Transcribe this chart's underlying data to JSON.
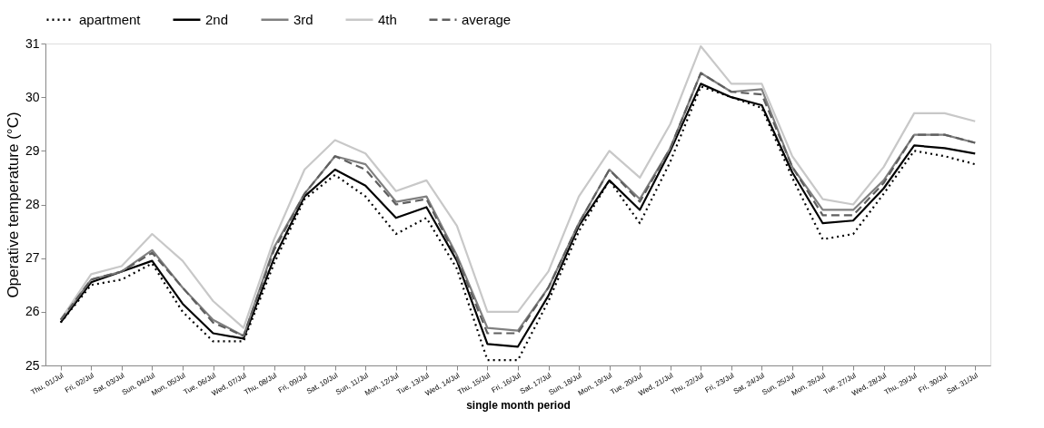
{
  "chart_data": {
    "type": "line",
    "xlabel": "single month period",
    "ylabel": "Operative temperature (°C)",
    "categories": [
      "Thu, 01/Jul",
      "Fri, 02/Jul",
      "Sat, 03/Jul",
      "Sun, 04/Jul",
      "Mon, 05/Jul",
      "Tue, 06/Jul",
      "Wed, 07/Jul",
      "Thu, 08/Jul",
      "Fri, 09/Jul",
      "Sat, 10/Jul",
      "Sun, 11/Jul",
      "Mon, 12/Jul",
      "Tue, 13/Jul",
      "Wed, 14/Jul",
      "Thu, 15/Jul",
      "Fri, 16/Jul",
      "Sat, 17/Jul",
      "Sun, 18/Jul",
      "Mon, 19/Jul",
      "Tue, 20/Jul",
      "Wed, 21/Jul",
      "Thu, 22/Jul",
      "Fri, 23/Jul",
      "Sat, 24/Jul",
      "Sun, 25/Jul",
      "Mon, 26/Jul",
      "Tue, 27/Jul",
      "Wed, 28/Jul",
      "Thu, 29/Jul",
      "Fri, 30/Jul",
      "Sat, 31/Jul"
    ],
    "series": [
      {
        "name": "apartment",
        "color": "#000000",
        "line_style": "dotted",
        "values": [
          25.8,
          26.5,
          26.6,
          26.9,
          26.0,
          25.45,
          25.45,
          26.9,
          28.1,
          28.55,
          28.15,
          27.45,
          27.75,
          26.8,
          25.1,
          25.1,
          26.2,
          27.5,
          28.45,
          27.65,
          28.8,
          30.2,
          30.0,
          29.8,
          28.5,
          27.35,
          27.45,
          28.2,
          29.0,
          28.9,
          28.75
        ]
      },
      {
        "name": "2nd",
        "color": "#000000",
        "line_style": "solid",
        "values": [
          25.8,
          26.55,
          26.75,
          26.95,
          26.15,
          25.6,
          25.5,
          27.0,
          28.15,
          28.65,
          28.35,
          27.75,
          27.95,
          26.95,
          25.4,
          25.35,
          26.3,
          27.6,
          28.45,
          27.9,
          29.0,
          30.25,
          30.0,
          29.85,
          28.6,
          27.65,
          27.7,
          28.3,
          29.1,
          29.05,
          28.95
        ]
      },
      {
        "name": "3rd",
        "color": "#808080",
        "line_style": "solid",
        "values": [
          25.85,
          26.6,
          26.75,
          27.15,
          26.45,
          25.85,
          25.55,
          27.2,
          28.2,
          28.9,
          28.75,
          28.05,
          28.15,
          27.05,
          25.7,
          25.65,
          26.45,
          27.65,
          28.65,
          28.1,
          29.05,
          30.45,
          30.1,
          30.15,
          28.7,
          27.9,
          27.9,
          28.45,
          29.3,
          29.3,
          29.15
        ]
      },
      {
        "name": "4th",
        "color": "#c8c8c8",
        "line_style": "solid",
        "values": [
          25.85,
          26.7,
          26.85,
          27.45,
          26.95,
          26.2,
          25.7,
          27.35,
          28.65,
          29.2,
          28.95,
          28.25,
          28.45,
          27.6,
          26.0,
          26.0,
          26.75,
          28.15,
          29.0,
          28.5,
          29.5,
          30.95,
          30.25,
          30.25,
          28.9,
          28.1,
          28.0,
          28.7,
          29.7,
          29.7,
          29.55
        ]
      },
      {
        "name": "average",
        "color": "#5f5f5f",
        "line_style": "dashed",
        "values": [
          25.85,
          26.6,
          26.75,
          27.1,
          26.45,
          25.8,
          25.55,
          27.15,
          28.2,
          28.9,
          28.65,
          28.0,
          28.1,
          27.0,
          25.6,
          25.6,
          26.45,
          27.65,
          28.65,
          28.05,
          29.05,
          30.45,
          30.1,
          30.05,
          28.7,
          27.8,
          27.8,
          28.4,
          29.3,
          29.3,
          29.15
        ]
      }
    ],
    "ylim": [
      25,
      31
    ],
    "yticks": [
      25,
      26,
      27,
      28,
      29,
      30,
      31
    ],
    "grid": false,
    "legend": "top"
  }
}
